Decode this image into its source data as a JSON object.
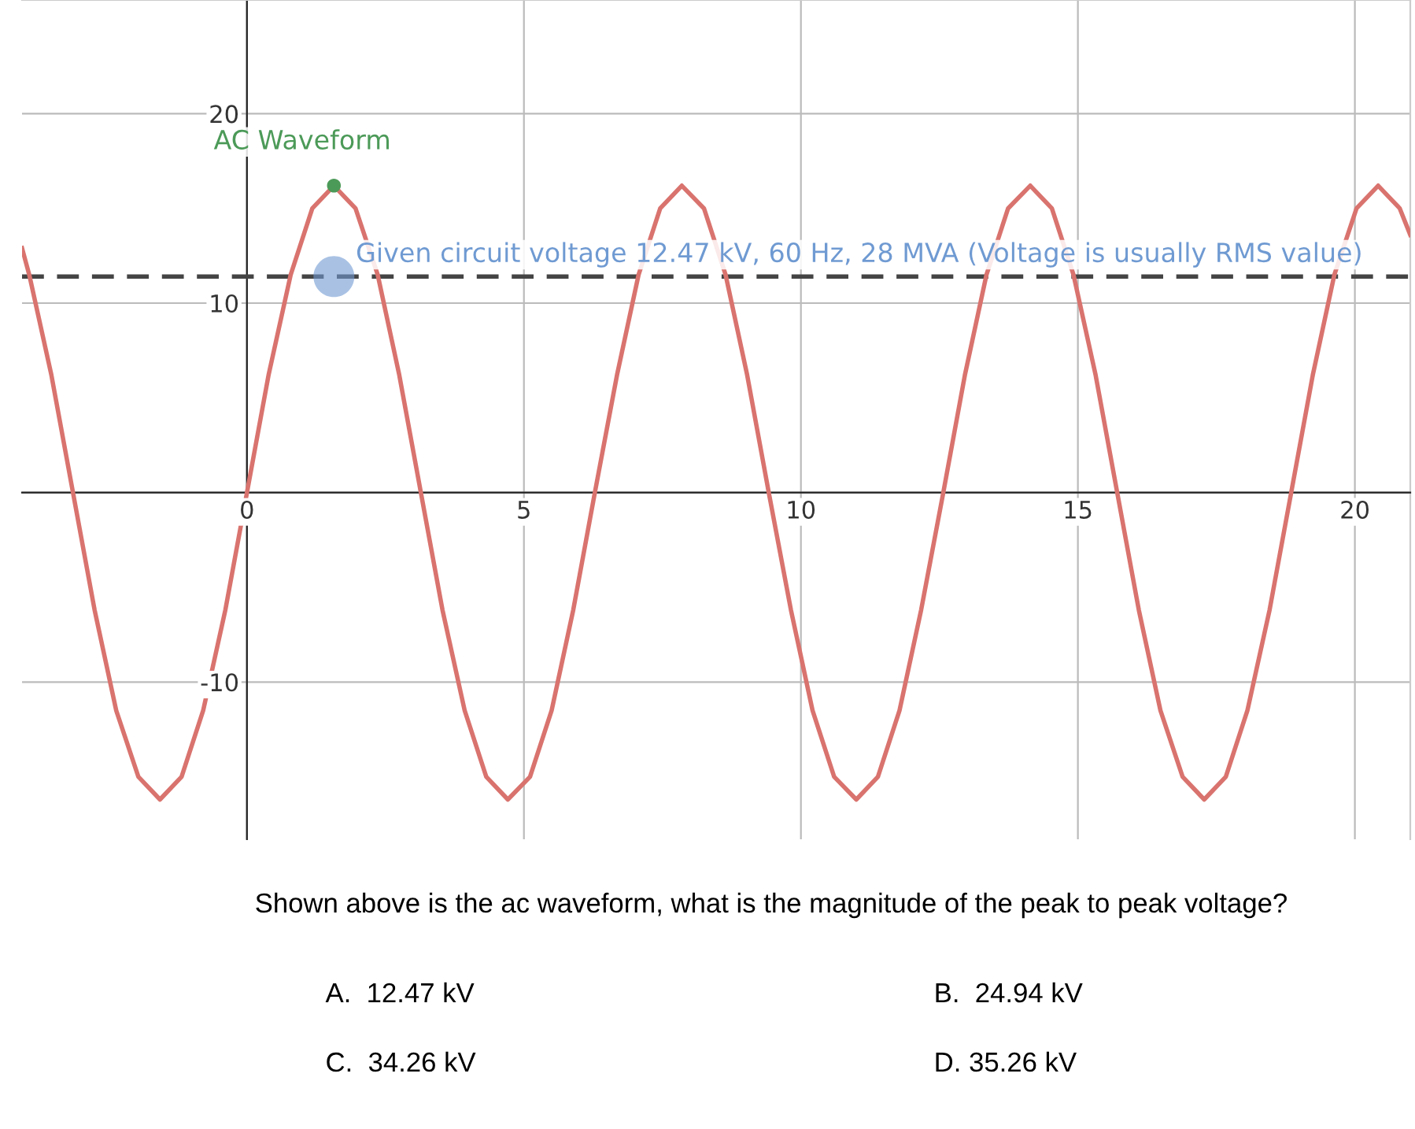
{
  "chart_data": {
    "type": "line",
    "xlim": [
      -4.06,
      21.0
    ],
    "ylim": [
      -18.3,
      26.0
    ],
    "xticks": [
      0,
      5,
      10,
      15,
      20
    ],
    "yticks": [
      -10,
      {
        "value": 0,
        "label": null
      },
      10,
      20
    ],
    "grid": true,
    "legend": false,
    "series": [
      {
        "type": "line",
        "color": "#d9736e",
        "x": [
          -4.06,
          -3.93,
          -3.53,
          -3.14,
          -2.75,
          -2.36,
          -1.96,
          -1.57,
          -1.18,
          -0.79,
          -0.39,
          0,
          0.39,
          0.79,
          1.18,
          1.57,
          1.96,
          2.36,
          2.75,
          3.14,
          3.53,
          3.93,
          4.32,
          4.71,
          5.11,
          5.5,
          5.89,
          6.28,
          6.68,
          7.07,
          7.46,
          7.85,
          8.25,
          8.64,
          9.03,
          9.42,
          9.82,
          10.21,
          10.6,
          11.0,
          11.39,
          11.78,
          12.17,
          12.57,
          12.96,
          13.35,
          13.74,
          14.14,
          14.53,
          14.92,
          15.32,
          15.71,
          16.1,
          16.49,
          16.89,
          17.28,
          17.67,
          18.06,
          18.46,
          18.85,
          19.24,
          19.63,
          20.03,
          20.42,
          20.81,
          21.0
        ],
        "values": [
          12.9,
          11.5,
          6.2,
          0,
          -6.2,
          -11.5,
          -15.0,
          -16.2,
          -15.0,
          -11.5,
          -6.2,
          0,
          6.2,
          11.5,
          15.0,
          16.2,
          15.0,
          11.5,
          6.2,
          0,
          -6.2,
          -11.5,
          -15.0,
          -16.2,
          -15.0,
          -11.5,
          -6.2,
          0,
          6.2,
          11.5,
          15.0,
          16.2,
          15.0,
          11.5,
          6.2,
          0,
          -6.2,
          -11.5,
          -15.0,
          -16.2,
          -15.0,
          -11.5,
          -6.2,
          0,
          6.2,
          11.5,
          15.0,
          16.2,
          15.0,
          11.5,
          6.2,
          0,
          -6.2,
          -11.5,
          -15.0,
          -16.2,
          -15.0,
          -11.5,
          -6.2,
          0,
          6.2,
          11.5,
          15.0,
          16.2,
          15.0,
          13.6
        ]
      },
      {
        "type": "scatter",
        "name": "AC Waveform",
        "color": "#4c9a58",
        "x": [
          1.57
        ],
        "values": [
          16.2
        ]
      },
      {
        "type": "scatter",
        "name": "Given circuit voltage 12.47 kV, 60 Hz, 28 MVA (Voltage is usually RMS value)",
        "color": "#6f9ad2",
        "x": [
          1.57
        ],
        "values": [
          11.4
        ]
      }
    ],
    "ref_lines": [
      {
        "axis": "y",
        "value": 11.4,
        "color": "#444444",
        "line_style": "dashed"
      }
    ],
    "annotations": [
      "Shown above is the ac waveform, what is the magnitude of the peak to peak voltage?",
      "A.  12.47 kV",
      "B.  24.94 kV",
      "C.  34.26 kV",
      "D. 35.26 kV"
    ]
  }
}
